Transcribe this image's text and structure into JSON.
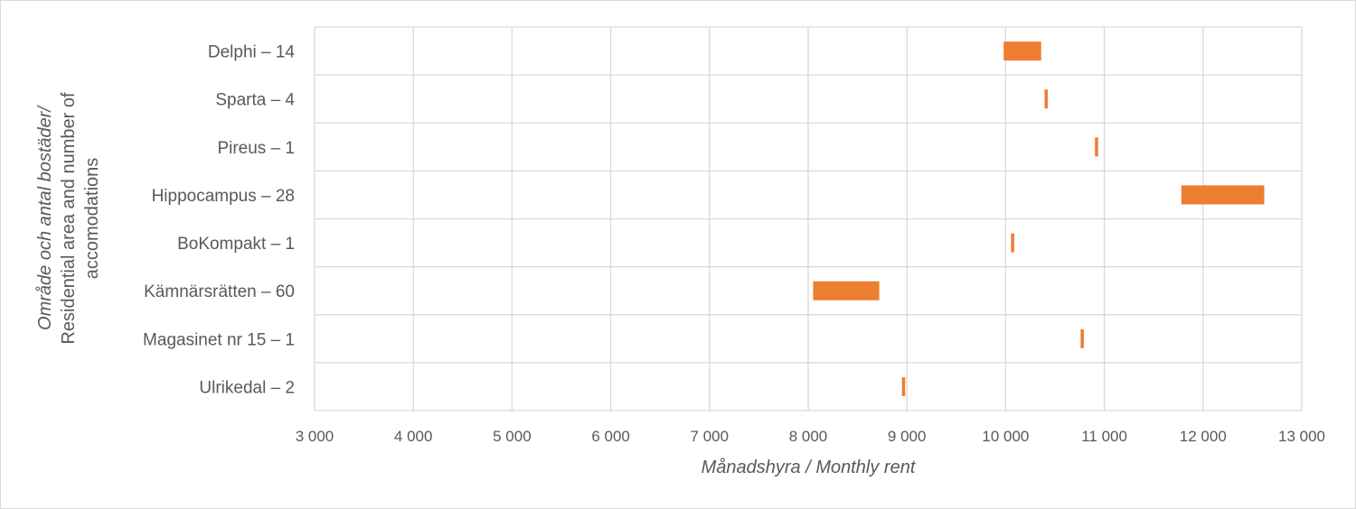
{
  "chart_data": {
    "type": "bar",
    "orientation": "horizontal",
    "subtype": "floating range (min–max)",
    "categories": [
      "Delphi – 14",
      "Sparta – 4",
      "Pireus – 1",
      "Hippocampus – 28",
      "BoKompakt – 1",
      "Kämnärsrätten – 60",
      "Magasinet nr 15 – 1",
      "Ulrikedal – 2"
    ],
    "series": [
      {
        "color": "#ED7D31",
        "ranges": [
          [
            9980,
            10360
          ],
          [
            10395,
            10425
          ],
          [
            10905,
            10935
          ],
          [
            11780,
            12620
          ],
          [
            10055,
            10085
          ],
          [
            8050,
            8720
          ],
          [
            10760,
            10790
          ],
          [
            8950,
            8980
          ]
        ]
      }
    ],
    "xlim": [
      3000,
      13000
    ],
    "xticks": [
      3000,
      4000,
      5000,
      6000,
      7000,
      8000,
      9000,
      10000,
      11000,
      12000,
      13000
    ],
    "xtick_labels": [
      "3 000",
      "4 000",
      "5 000",
      "6 000",
      "7 000",
      "8 000",
      "9 000",
      "10 000",
      "11 000",
      "12 000",
      "13 000"
    ],
    "xlabel": "Månadshyra / Monthly rent",
    "ylabel_lines": [
      "Område och antal bostäder/",
      "Residential area and number of",
      "accomodations"
    ],
    "grid": true,
    "legend": "none"
  }
}
